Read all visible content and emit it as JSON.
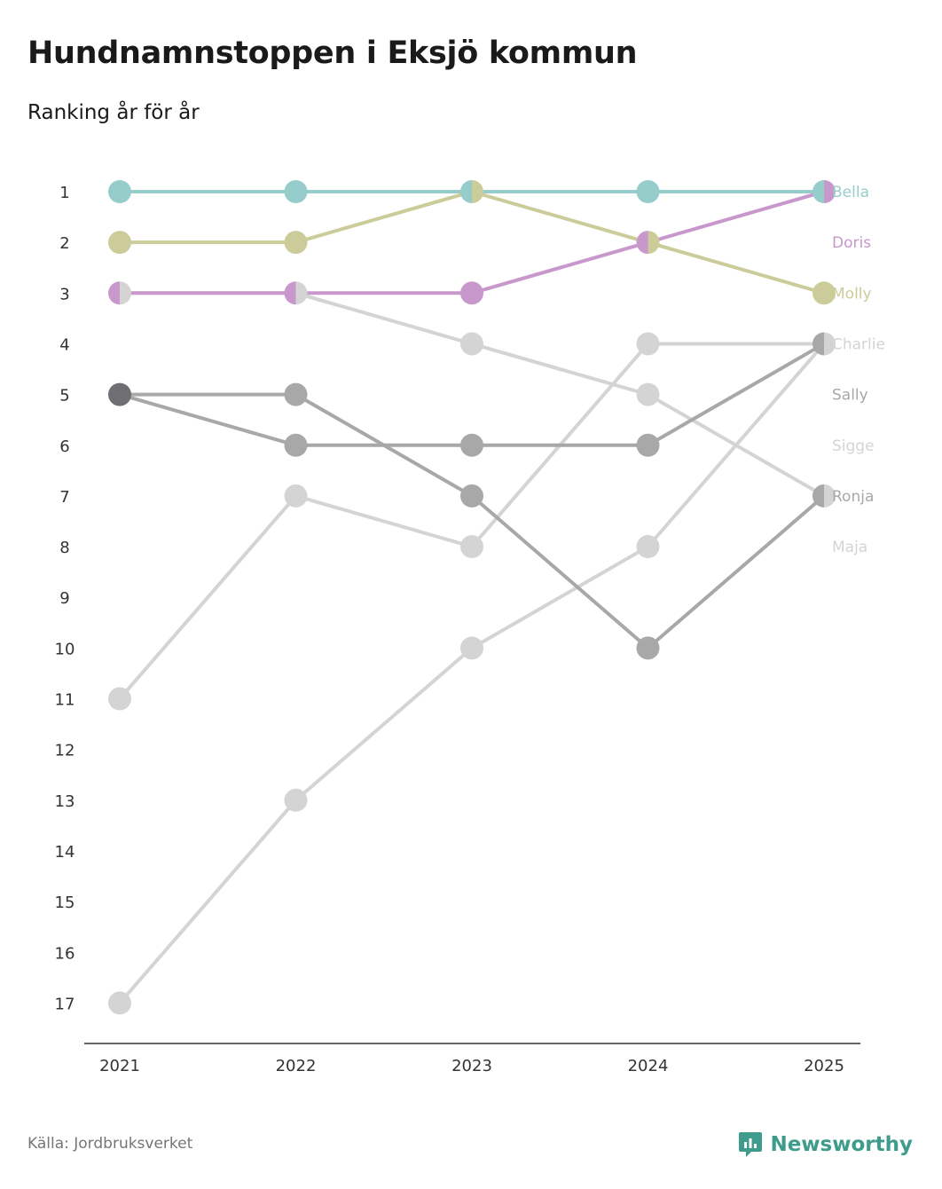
{
  "title": "Hundnamnstoppen i Eksjö kommun",
  "subtitle": "Ranking år för år",
  "source": "Källa: Jordbruksverket",
  "brand": {
    "name": "Newsworthy",
    "icon": "newsworthy-logo-icon",
    "color": "#3d9c8c"
  },
  "chart_data": {
    "type": "line",
    "title": "Hundnamnstoppen i Eksjö kommun",
    "subtitle": "Ranking år för år",
    "xlabel": "",
    "ylabel": "",
    "x": [
      "2021",
      "2022",
      "2023",
      "2024",
      "2025"
    ],
    "y_ticks": [
      "1",
      "2",
      "3",
      "4",
      "5",
      "6",
      "7",
      "8",
      "9",
      "10",
      "11",
      "12",
      "13",
      "14",
      "15",
      "16",
      "17"
    ],
    "ylim": [
      1,
      17
    ],
    "y_inverted": true,
    "grid": false,
    "series": [
      {
        "name": "Maja",
        "values": [
          11,
          7,
          8,
          4,
          4
        ],
        "color": "#d4d4d4"
      },
      {
        "name": "Sigge",
        "values": [
          17,
          13,
          10,
          8,
          4
        ],
        "color": "#d4d4d4"
      },
      {
        "name": "Ronja",
        "values": [
          3,
          3,
          4,
          5,
          7
        ],
        "color": "#d4d4d4"
      },
      {
        "name": "Charlie",
        "values": [
          5,
          6,
          6,
          6,
          4
        ],
        "color": "#a8a8a8"
      },
      {
        "name": "Sally",
        "values": [
          5,
          5,
          7,
          10,
          7
        ],
        "color": "#a8a8a8"
      },
      {
        "name": "Molly",
        "values": [
          2,
          2,
          1,
          2,
          3
        ],
        "color": "#cbcc9a"
      },
      {
        "name": "Doris",
        "values": [
          3,
          3,
          3,
          2,
          1
        ],
        "color": "#c898cc"
      },
      {
        "name": "Bella",
        "values": [
          1,
          1,
          1,
          1,
          1
        ],
        "color": "#96cdcb"
      }
    ],
    "end_labels": [
      {
        "name": "Bella",
        "color": "#96cdcb"
      },
      {
        "name": "Doris",
        "color": "#c898cc"
      },
      {
        "name": "Molly",
        "color": "#cbcc9a"
      },
      {
        "name": "Charlie",
        "color": "#d4d4d4"
      },
      {
        "name": "Sally",
        "color": "#a8a8a8"
      },
      {
        "name": "Sigge",
        "color": "#d4d4d4"
      },
      {
        "name": "Ronja",
        "color": "#a8a8a8"
      },
      {
        "name": "Maja",
        "color": "#d4d4d4"
      }
    ],
    "shared_marker_color": "#6f6f73"
  }
}
